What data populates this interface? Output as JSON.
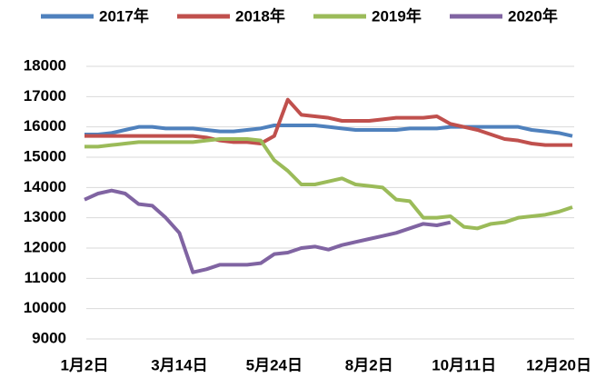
{
  "chart_data": {
    "type": "line",
    "categories": [
      "1月2日",
      null,
      null,
      null,
      null,
      null,
      null,
      "3月14日",
      null,
      null,
      null,
      null,
      null,
      null,
      "5月24日",
      null,
      null,
      null,
      null,
      null,
      null,
      "8月2日",
      null,
      null,
      null,
      null,
      null,
      null,
      "10月11日",
      null,
      null,
      null,
      null,
      null,
      null,
      "12月20日",
      null
    ],
    "series": [
      {
        "name": "2017年",
        "color": "#4f81bd",
        "values": [
          15750,
          15750,
          15800,
          15900,
          16000,
          16000,
          15950,
          15950,
          15950,
          15900,
          15850,
          15850,
          15900,
          15950,
          16050,
          16050,
          16050,
          16050,
          16000,
          15950,
          15900,
          15900,
          15900,
          15900,
          15950,
          15950,
          15950,
          16000,
          16000,
          16000,
          16000,
          16000,
          16000,
          15900,
          15850,
          15800,
          15700
        ]
      },
      {
        "name": "2018年",
        "color": "#c0504d",
        "values": [
          15700,
          15700,
          15700,
          15700,
          15700,
          15700,
          15700,
          15700,
          15700,
          15650,
          15550,
          15500,
          15500,
          15450,
          15700,
          16900,
          16400,
          16350,
          16300,
          16200,
          16200,
          16200,
          16250,
          16300,
          16300,
          16300,
          16350,
          16100,
          16000,
          15900,
          15750,
          15600,
          15550,
          15450,
          15400,
          15400,
          15400
        ]
      },
      {
        "name": "2019年",
        "color": "#9bbb59",
        "values": [
          15350,
          15350,
          15400,
          15450,
          15500,
          15500,
          15500,
          15500,
          15500,
          15550,
          15600,
          15600,
          15600,
          15550,
          14900,
          14550,
          14100,
          14100,
          14200,
          14300,
          14100,
          14050,
          14000,
          13600,
          13550,
          13000,
          13000,
          13050,
          12700,
          12650,
          12800,
          12850,
          13000,
          13050,
          13100,
          13200,
          13350
        ]
      },
      {
        "name": "2020年",
        "color": "#8064a2",
        "values": [
          13600,
          13800,
          13900,
          13800,
          13450,
          13400,
          13000,
          12500,
          11200,
          11300,
          11450,
          11450,
          11450,
          11500,
          11800,
          11850,
          12000,
          12050,
          11950,
          12100,
          12200,
          12300,
          12400,
          12500,
          12650,
          12800,
          12750,
          12850,
          null,
          null,
          null,
          null,
          null,
          null,
          null,
          null,
          null
        ]
      }
    ],
    "ylim": [
      9000,
      18000
    ],
    "yticks": [
      9000,
      10000,
      11000,
      12000,
      13000,
      14000,
      15000,
      16000,
      17000,
      18000
    ],
    "grid": true
  }
}
